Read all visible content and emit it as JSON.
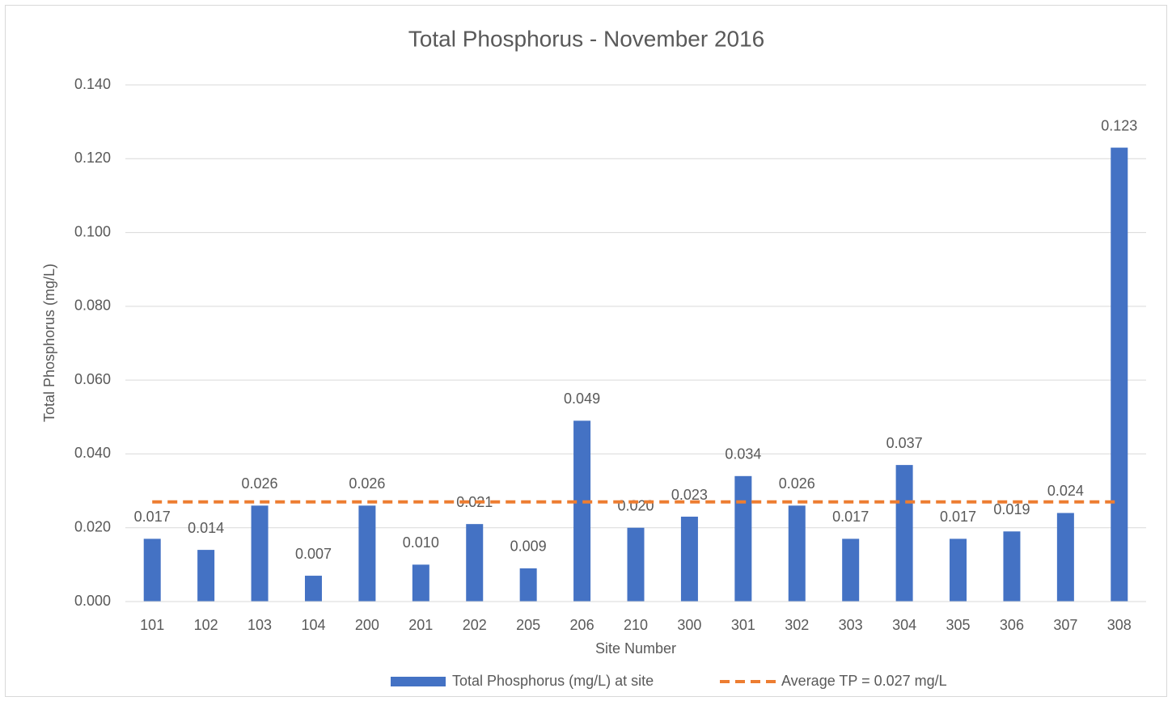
{
  "chart_data": {
    "type": "bar",
    "title": "Total Phosphorus - November 2016",
    "x_label": "Site Number",
    "y_label": "Total Phosphorus (mg/L)",
    "categories": [
      "101",
      "102",
      "103",
      "104",
      "200",
      "201",
      "202",
      "205",
      "206",
      "210",
      "300",
      "301",
      "302",
      "303",
      "304",
      "305",
      "306",
      "307",
      "308"
    ],
    "series": [
      {
        "name": "Total Phosphorus (mg/L) at site",
        "type": "bar",
        "color": "#4472c4",
        "values": [
          0.017,
          0.014,
          0.026,
          0.007,
          0.026,
          0.01,
          0.021,
          0.009,
          0.049,
          0.02,
          0.023,
          0.034,
          0.026,
          0.017,
          0.037,
          0.017,
          0.019,
          0.024,
          0.123
        ],
        "value_labels": [
          "0.017",
          "0.014",
          "0.026",
          "0.007",
          "0.026",
          "0.010",
          "0.021",
          "0.009",
          "0.049",
          "0.020",
          "0.023",
          "0.034",
          "0.026",
          "0.017",
          "0.037",
          "0.017",
          "0.019",
          "0.024",
          "0.123"
        ]
      },
      {
        "name": "Average TP = 0.027 mg/L",
        "type": "line",
        "color": "#ed7d31",
        "dashed": true,
        "values": [
          0.027,
          0.027,
          0.027,
          0.027,
          0.027,
          0.027,
          0.027,
          0.027,
          0.027,
          0.027,
          0.027,
          0.027,
          0.027,
          0.027,
          0.027,
          0.027,
          0.027,
          0.027,
          0.027
        ]
      }
    ],
    "ylim": [
      0,
      0.14
    ],
    "yticks": [
      {
        "value": 0,
        "label": "0.000"
      },
      {
        "value": 0.02,
        "label": "0.020"
      },
      {
        "value": 0.04,
        "label": "0.040"
      },
      {
        "value": 0.06,
        "label": "0.060"
      },
      {
        "value": 0.08,
        "label": "0.080"
      },
      {
        "value": 0.1,
        "label": "0.100"
      },
      {
        "value": 0.12,
        "label": "0.120"
      },
      {
        "value": 0.14,
        "label": "0.140"
      }
    ],
    "grid": true,
    "legend": "bottom"
  }
}
